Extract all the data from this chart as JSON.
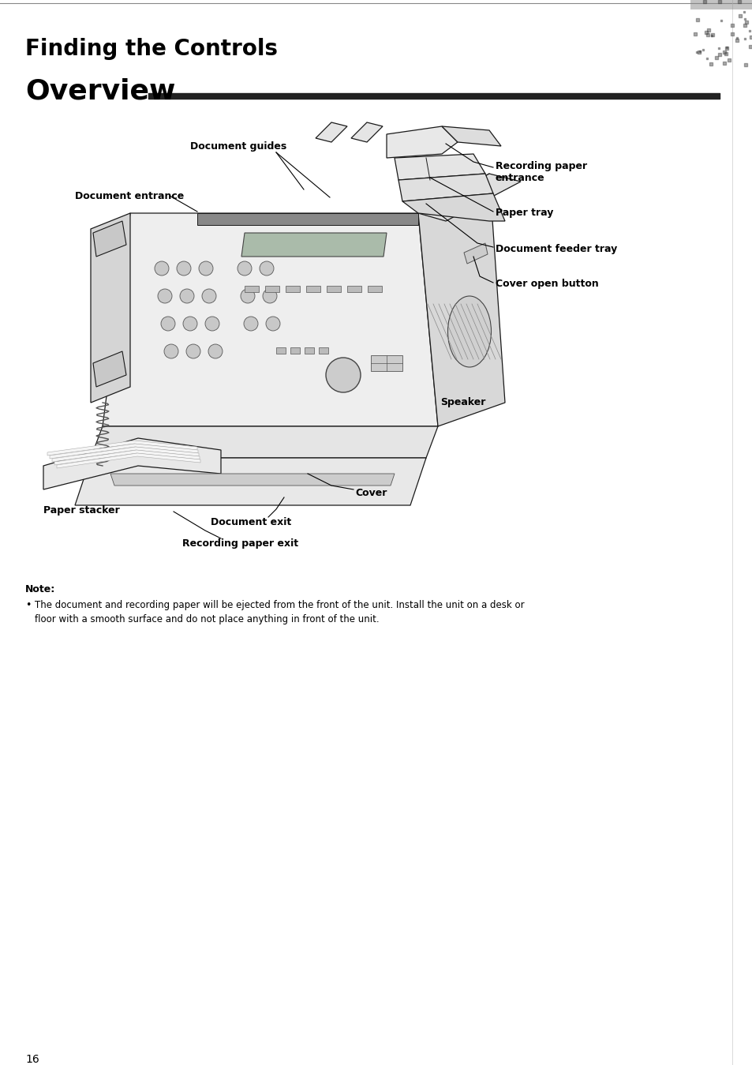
{
  "title": "Finding the Controls",
  "subtitle": "Overview",
  "bg_color": "#ffffff",
  "title_color": "#000000",
  "title_fontsize": 20,
  "subtitle_fontsize": 26,
  "note_title": "Note:",
  "note_line1": "The document and recording paper will be ejected from the front of the unit. Install the unit on a desk or",
  "note_line2": "floor with a smooth surface and do not place anything in front of the unit.",
  "page_number": "16",
  "label_fs": 9.0,
  "labels": {
    "document_guides": "Document guides",
    "document_entrance": "Document entrance",
    "recording_paper_entrance": "Recording paper\nentrance",
    "paper_tray": "Paper tray",
    "document_feeder_tray": "Document feeder tray",
    "cover_open_button": "Cover open button",
    "speaker": "Speaker",
    "paper_stacker": "Paper stacker",
    "cover": "Cover",
    "document_exit": "Document exit",
    "recording_paper_exit": "Recording paper exit"
  }
}
